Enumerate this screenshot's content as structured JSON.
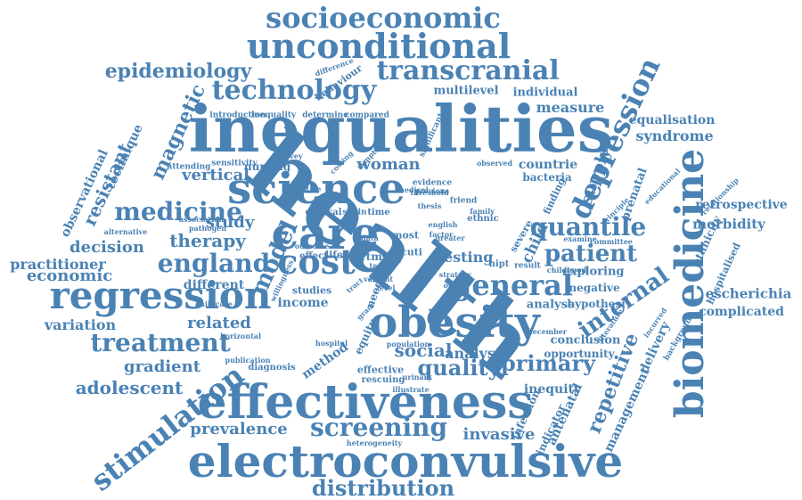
{
  "word_color": "#4a82b4",
  "background": "#ffffff",
  "words": [
    "health",
    "inequalities",
    "electroconvulsive",
    "effectiveness",
    "obesity",
    "science",
    "care",
    "biomedicine",
    "regression",
    "general",
    "cost",
    "depression",
    "unconditional",
    "socioeconomic",
    "transcranial",
    "technology",
    "stimulation",
    "screening",
    "distribution",
    "model",
    "medicine",
    "england",
    "quantile",
    "patient",
    "internal",
    "treatment",
    "primary",
    "quality",
    "social",
    "epidemiology",
    "magnetic",
    "adolescent",
    "repetitive",
    "prevalence",
    "invasive",
    "gradient",
    "therapy",
    "decision",
    "woman",
    "related",
    "resistant",
    "economic",
    "practitioner",
    "vertical",
    "study",
    "variation",
    "supply",
    "escherichia",
    "equalisation",
    "syndrome",
    "morbidity",
    "retrospective",
    "observational",
    "technique",
    "testing",
    "analysis",
    "child",
    "management",
    "delivery",
    "antenatal",
    "indicator",
    "ethnicity",
    "hospitalised",
    "complicated",
    "income",
    "measure",
    "individual",
    "multilevel",
    "exploring",
    "negative",
    "hypothesi",
    "analyse",
    "conclusion",
    "opportunity",
    "inequity",
    "infection",
    "prenatal",
    "countrie",
    "bacteria",
    "nursing",
    "different",
    "diagnosis",
    "method",
    "equity",
    "effective",
    "rescuing",
    "population",
    "hospital",
    "publication",
    "horizontal",
    "sensitivity",
    "attending",
    "alternative",
    "association",
    "pathogen",
    "childcare",
    "heterogeneity",
    "introduction",
    "inequality",
    "determine",
    "compared",
    "behaviour",
    "difference",
    "survey",
    "clinical",
    "spain",
    "time",
    "life",
    "effect",
    "outcome",
    "studies",
    "willingness",
    "need",
    "cuti",
    "most",
    "data",
    "rtms",
    "tract",
    "finding",
    "severe",
    "nipt",
    "result",
    "childhood",
    "examine",
    "committee",
    "december",
    "literature",
    "incurred",
    "background",
    "relationship",
    "educational",
    "principle",
    "evidence",
    "threshold",
    "observed",
    "significant",
    "symptom",
    "ethnic",
    "family",
    "friend",
    "thesis",
    "previous",
    "medical",
    "practice",
    "value",
    "costing",
    "cell",
    "free",
    "strategy",
    "option",
    "illustrate",
    "urinary",
    "travel",
    "gram",
    "level",
    "english",
    "factor",
    "greater",
    "test",
    "extent"
  ]
}
